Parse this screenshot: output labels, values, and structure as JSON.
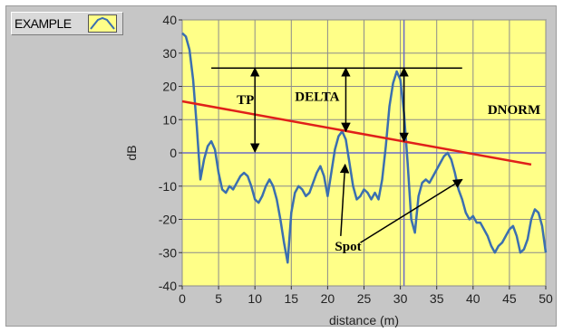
{
  "legend": {
    "label": "EXAMPLE"
  },
  "chart_data": {
    "type": "line",
    "title": "",
    "xlabel": "distance (m)",
    "ylabel": "dB",
    "xlim": [
      0,
      50
    ],
    "ylim": [
      -40,
      40
    ],
    "xticks": [
      0,
      5,
      10,
      15,
      20,
      25,
      30,
      35,
      40,
      45,
      50
    ],
    "yticks": [
      -40,
      -30,
      -20,
      -10,
      0,
      10,
      20,
      30,
      40
    ],
    "grid": true,
    "background": "#ffff88",
    "series": [
      {
        "name": "EXAMPLE",
        "color": "#3b6fb0",
        "x": [
          0,
          0.5,
          1,
          1.5,
          2,
          2.5,
          3,
          3.5,
          4,
          4.5,
          5,
          5.5,
          6,
          6.5,
          7,
          7.5,
          8,
          8.5,
          9,
          9.5,
          10,
          10.5,
          11,
          11.5,
          12,
          12.5,
          13,
          13.5,
          14,
          14.5,
          15,
          15.5,
          16,
          16.5,
          17,
          17.5,
          18,
          18.5,
          19,
          19.5,
          20,
          20.5,
          21,
          21.5,
          22,
          22.5,
          23,
          23.5,
          24,
          24.5,
          25,
          25.5,
          26,
          26.5,
          27,
          27.5,
          28,
          28.5,
          29,
          29.5,
          30,
          30.5,
          31,
          31.5,
          32,
          32.5,
          33,
          33.5,
          34,
          34.5,
          35,
          35.5,
          36,
          36.5,
          37,
          37.5,
          38,
          38.5,
          39,
          39.5,
          40,
          40.5,
          41,
          41.5,
          42,
          42.5,
          43,
          43.5,
          44,
          44.5,
          45,
          45.5,
          46,
          46.5,
          47,
          47.5,
          48,
          48.5,
          49,
          49.5,
          50
        ],
        "y": [
          36,
          35,
          31,
          22,
          8,
          -8,
          -2,
          2,
          3.5,
          1,
          -6,
          -11,
          -12,
          -10,
          -11,
          -9,
          -7,
          -6,
          -7,
          -10,
          -14,
          -15,
          -13,
          -10,
          -8,
          -10,
          -14,
          -20,
          -27,
          -33,
          -18,
          -12,
          -10,
          -11,
          -13,
          -12,
          -9,
          -6,
          -4,
          -7,
          -13,
          -6,
          1,
          5,
          6.5,
          4,
          -3,
          -10,
          -14,
          -13,
          -11,
          -12,
          -14,
          -12,
          -14,
          -8,
          2,
          14,
          21,
          24.5,
          22,
          12,
          -3,
          -20,
          -24,
          -13,
          -9,
          -8,
          -9,
          -7,
          -5,
          -3,
          -1,
          0,
          -2,
          -6,
          -11,
          -14,
          -18,
          -20,
          -19,
          -21,
          -21,
          -23,
          -25,
          -28,
          -30,
          -28,
          -27,
          -25,
          -23,
          -22,
          -25,
          -30,
          -29,
          -26,
          -20,
          -17,
          -18,
          -22,
          -30
        ]
      },
      {
        "name": "",
        "color": "#e0201a",
        "x": [
          0,
          48
        ],
        "y": [
          15.5,
          -3.5
        ]
      }
    ],
    "annotations": [
      {
        "text": "TP",
        "x": 7.5,
        "y": 16
      },
      {
        "text": "DELTA",
        "x": 15.5,
        "y": 17
      },
      {
        "text": "DNORM",
        "x": 42,
        "y": 13
      },
      {
        "text": "Spot",
        "x": 21,
        "y": -28
      }
    ]
  }
}
